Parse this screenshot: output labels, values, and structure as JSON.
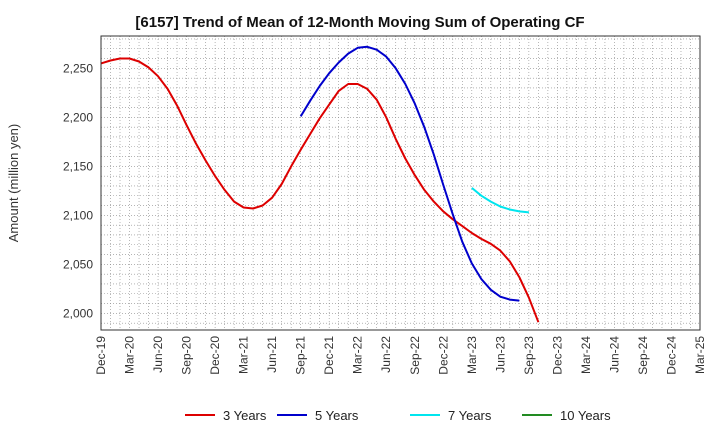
{
  "chart_data": {
    "type": "line",
    "title": "[6157]  Trend of Mean of 12-Month Moving Sum of Operating CF",
    "xlabel": "",
    "ylabel": "Amount (million yen)",
    "ylim": [
      1983,
      2283
    ],
    "yticks": [
      2000,
      2050,
      2100,
      2150,
      2200,
      2250
    ],
    "ytick_labels": [
      "2,000",
      "2,050",
      "2,100",
      "2,150",
      "2,200",
      "2,250"
    ],
    "xticks": [
      "Dec-19",
      "Mar-20",
      "Jun-20",
      "Sep-20",
      "Dec-20",
      "Mar-21",
      "Jun-21",
      "Sep-21",
      "Dec-21",
      "Mar-22",
      "Jun-22",
      "Sep-22",
      "Dec-22",
      "Mar-23",
      "Jun-23",
      "Sep-23",
      "Dec-23",
      "Mar-24",
      "Jun-24",
      "Sep-24",
      "Dec-24",
      "Mar-25"
    ],
    "grid": true,
    "legend_position": "bottom",
    "series": [
      {
        "name": "3 Years",
        "color": "#dd0000",
        "start_index": 0,
        "values": [
          2255,
          2258,
          2260,
          2260,
          2257,
          2251,
          2242,
          2229,
          2212,
          2192,
          2173,
          2156,
          2140,
          2126,
          2114,
          2108,
          2107,
          2110,
          2118,
          2132,
          2150,
          2167,
          2183,
          2199,
          2213,
          2227,
          2234,
          2234,
          2229,
          2218,
          2200,
          2178,
          2158,
          2141,
          2126,
          2114,
          2104,
          2096,
          2089,
          2082,
          2076,
          2071,
          2064,
          2053,
          2037,
          2016,
          1991
        ]
      },
      {
        "name": "5 Years",
        "color": "#0000cc",
        "start_index": 21,
        "values": [
          2201,
          2217,
          2232,
          2245,
          2256,
          2265,
          2271,
          2272,
          2269,
          2262,
          2250,
          2234,
          2214,
          2190,
          2162,
          2131,
          2101,
          2073,
          2051,
          2035,
          2024,
          2017,
          2014,
          2013
        ]
      },
      {
        "name": "7 Years",
        "color": "#00e5ee",
        "start_index": 39,
        "values": [
          2128,
          2120,
          2114,
          2109,
          2106,
          2104,
          2103
        ]
      },
      {
        "name": "10 Years",
        "color": "#228b22",
        "start_index": 0,
        "values": []
      }
    ]
  }
}
